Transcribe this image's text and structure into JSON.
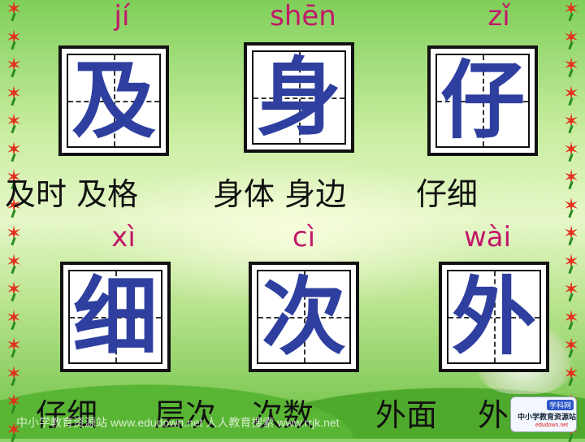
{
  "row1": [
    {
      "pinyin": "jí",
      "char": "及"
    },
    {
      "pinyin": "shēn",
      "char": "身"
    },
    {
      "pinyin": "zǐ",
      "char": "仔"
    }
  ],
  "row2": [
    {
      "pinyin": "xì",
      "char": "细"
    },
    {
      "pinyin": "cì",
      "char": "次"
    },
    {
      "pinyin": "wài",
      "char": "外"
    }
  ],
  "words_row1": [
    "及时 及格",
    "身体 身边",
    "仔细"
  ],
  "words_row2": [
    "仔细",
    "层次",
    "次数",
    "外面",
    "外表"
  ],
  "footer_text": "中小学教育资源站 www.edudown.net   人人教育搜索 www.rrjk.net",
  "logo": {
    "badge": "学科网",
    "main": "中小学教育资源站",
    "url": "edudown.net"
  },
  "colors": {
    "pinyin": "#c2186a",
    "character": "#2f3fa0",
    "border_leaf": "#e2321e"
  }
}
